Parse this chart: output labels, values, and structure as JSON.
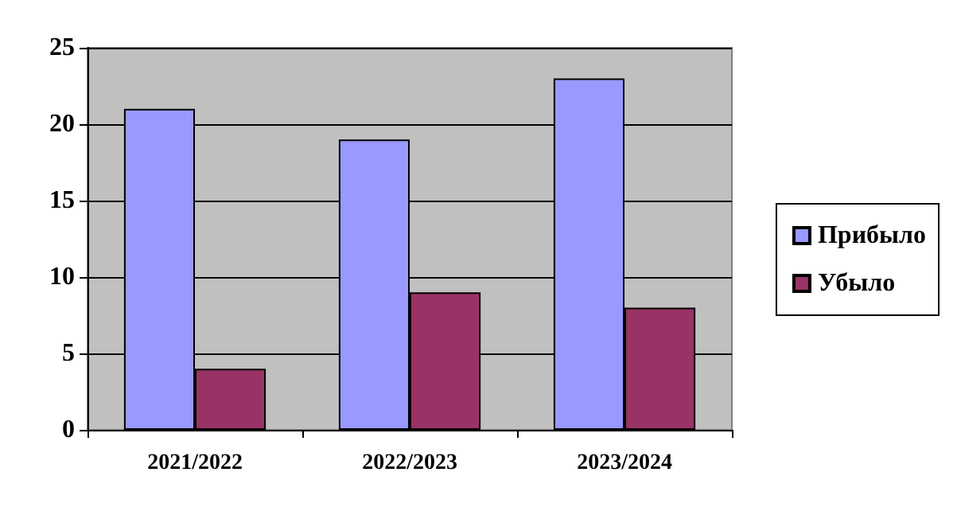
{
  "chart_data": {
    "type": "bar",
    "categories": [
      "2021/2022",
      "2022/2023",
      "2023/2024"
    ],
    "series": [
      {
        "name": "Прибыло",
        "color": "#9999ff",
        "values": [
          21,
          19,
          23
        ]
      },
      {
        "name": "Убыло",
        "color": "#993366",
        "values": [
          4,
          9,
          8
        ]
      }
    ],
    "ylim": [
      0,
      25
    ],
    "yticks": [
      0,
      5,
      10,
      15,
      20,
      25
    ],
    "grid": "y",
    "legend": "right"
  }
}
